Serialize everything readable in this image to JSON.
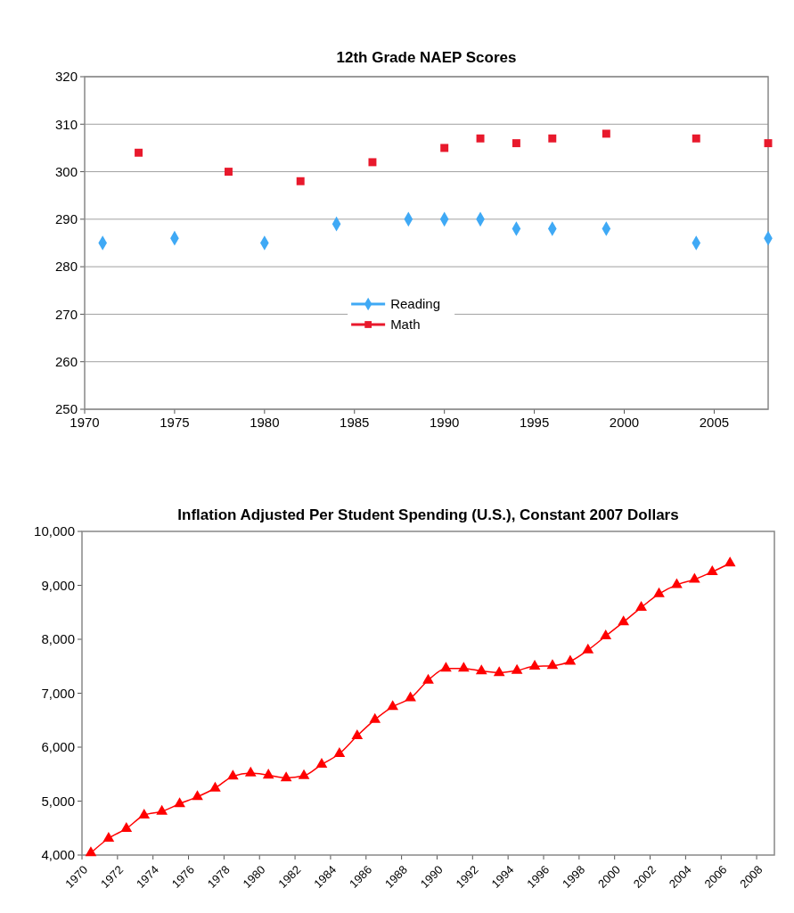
{
  "chart_data": [
    {
      "type": "scatter",
      "title": "12th Grade NAEP Scores",
      "xlim": [
        1970,
        2008
      ],
      "xticks": [
        1970,
        1975,
        1980,
        1985,
        1990,
        1995,
        2000,
        2005
      ],
      "ylim": [
        250,
        320
      ],
      "yticks": [
        250,
        260,
        270,
        280,
        290,
        300,
        310,
        320
      ],
      "grid": "y",
      "legend": "bottom",
      "series": [
        {
          "name": "Reading",
          "color": "#3fa9f5",
          "marker": "diamond",
          "x": [
            1971,
            1975,
            1980,
            1984,
            1988,
            1990,
            1992,
            1994,
            1996,
            1999,
            2004,
            2008
          ],
          "values": [
            285,
            286,
            285,
            289,
            290,
            290,
            290,
            288,
            288,
            288,
            285,
            286
          ]
        },
        {
          "name": "Math",
          "color": "#e8192c",
          "marker": "square",
          "x": [
            1973,
            1978,
            1982,
            1986,
            1990,
            1992,
            1994,
            1996,
            1999,
            2004,
            2008
          ],
          "values": [
            304,
            300,
            298,
            302,
            305,
            307,
            306,
            307,
            308,
            307,
            306
          ]
        }
      ]
    },
    {
      "type": "line",
      "title": "Inflation Adjusted Per Student Spending (U.S.), Constant 2007 Dollars",
      "xlim": [
        1970,
        2009
      ],
      "xticks": [
        1970,
        1972,
        1974,
        1976,
        1978,
        1980,
        1982,
        1984,
        1986,
        1988,
        1990,
        1992,
        1994,
        1996,
        1998,
        2000,
        2002,
        2004,
        2006,
        2008
      ],
      "ylim": [
        4000,
        10000
      ],
      "yticks": [
        {
          "value": 4000,
          "label": "4,000"
        },
        {
          "value": 5000,
          "label": "5,000"
        },
        {
          "value": 6000,
          "label": "6,000"
        },
        {
          "value": 7000,
          "label": "7,000"
        },
        {
          "value": 8000,
          "label": "8,000"
        },
        {
          "value": 9000,
          "label": "9,000"
        },
        {
          "value": 10000,
          "label": "10,000"
        }
      ],
      "marker": "triangle",
      "series": [
        {
          "color": "#ff0000",
          "x": [
            1970.5,
            1971.5,
            1972.5,
            1973.5,
            1974.5,
            1975.5,
            1976.5,
            1977.5,
            1978.5,
            1979.5,
            1980.5,
            1981.5,
            1982.5,
            1983.5,
            1984.5,
            1985.5,
            1986.5,
            1987.5,
            1988.5,
            1989.5,
            1990.5,
            1991.5,
            1992.5,
            1993.5,
            1994.5,
            1995.5,
            1996.5,
            1997.5,
            1998.5,
            1999.5,
            2000.5,
            2001.5,
            2002.5,
            2003.5,
            2004.5,
            2005.5,
            2006.5
          ],
          "values": [
            4040,
            4310,
            4490,
            4740,
            4810,
            4950,
            5080,
            5240,
            5460,
            5520,
            5480,
            5430,
            5470,
            5680,
            5880,
            6210,
            6510,
            6750,
            6910,
            7240,
            7460,
            7460,
            7410,
            7380,
            7420,
            7500,
            7510,
            7590,
            7800,
            8060,
            8320,
            8590,
            8840,
            9010,
            9110,
            9250,
            9410
          ]
        }
      ]
    }
  ]
}
